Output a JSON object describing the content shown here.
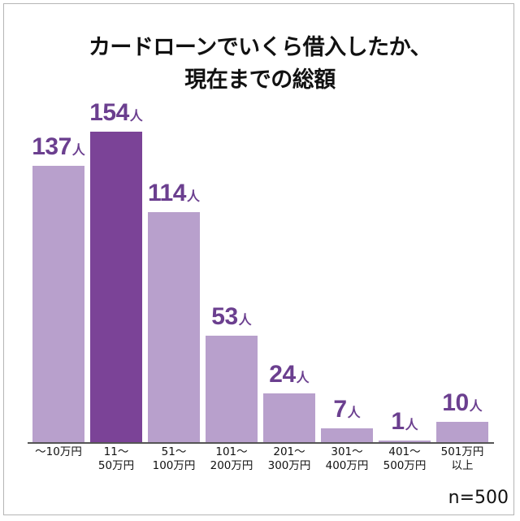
{
  "title": {
    "line1": "カードローンでいくら借入したか、",
    "line2": "現在までの総額"
  },
  "sample": "n=500",
  "unit_label": "人",
  "colors": {
    "bar": "#b8a0cc",
    "highlight_bar": "#7b4397",
    "value_text": "#6b3f8f"
  },
  "chart_data": {
    "type": "bar",
    "title": "カードローンでいくら借入したか、現在までの総額",
    "xlabel": "",
    "ylabel": "人",
    "categories": [
      "~10万円",
      "11~50万円",
      "51~100万円",
      "101~200万円",
      "201~300万円",
      "301~400万円",
      "401~500万円",
      "501万円以上"
    ],
    "values": [
      137,
      154,
      114,
      53,
      24,
      7,
      1,
      10
    ],
    "highlight_index": 1,
    "note": "n=500",
    "grid": false,
    "ylim": [
      0,
      154
    ]
  },
  "bars": [
    {
      "cat": "～10万円",
      "value": "137",
      "unit": "人"
    },
    {
      "cat": "11～\n50万円",
      "value": "154",
      "unit": "人"
    },
    {
      "cat": "51～\n100万円",
      "value": "114",
      "unit": "人"
    },
    {
      "cat": "101～\n200万円",
      "value": "53",
      "unit": "人"
    },
    {
      "cat": "201～\n300万円",
      "value": "24",
      "unit": "人"
    },
    {
      "cat": "301～\n400万円",
      "value": "7",
      "unit": "人"
    },
    {
      "cat": "401～\n500万円",
      "value": "1",
      "unit": "人"
    },
    {
      "cat": "501万円\n以上",
      "value": "10",
      "unit": "人"
    }
  ]
}
